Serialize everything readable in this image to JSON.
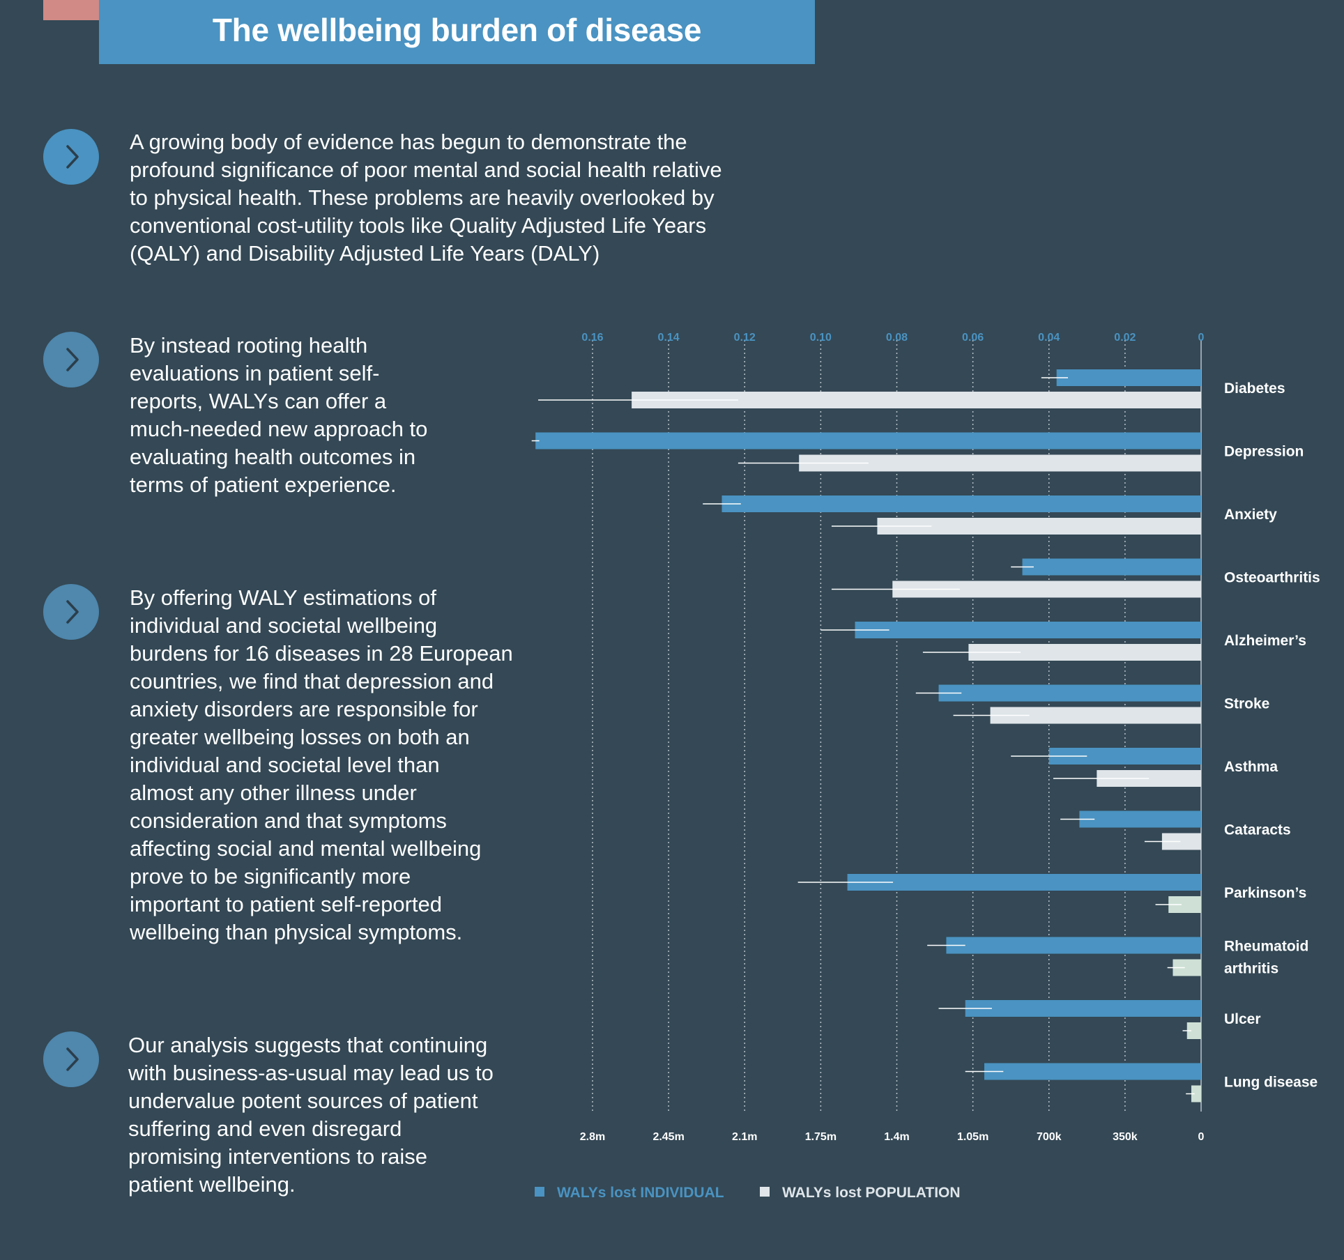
{
  "page": {
    "title": "The wellbeing burden of disease"
  },
  "paragraphs": [
    {
      "lines": [
        "A growing body of evidence has begun to demonstrate the",
        "profound significance of poor mental and social health relative",
        "to physical health. These problems are heavily overlooked by",
        "conventional cost-utility tools like Quality Adjusted Life Years",
        "(QALY) and Disability Adjusted Life Years (DALY)"
      ]
    },
    {
      "lines": [
        "By instead rooting health",
        "evaluations in patient self-",
        "reports, WALYs can offer a",
        "much-needed new approach to",
        "evaluating health outcomes in",
        "terms of patient experience."
      ]
    },
    {
      "lines": [
        "By offering WALY estimations of",
        "individual and societal wellbeing",
        "burdens for 16 diseases in 28 European",
        "countries, we find that depression and",
        "anxiety disorders are responsible for",
        "greater wellbeing losses on both an",
        "individual and societal level than",
        "almost any other illness under",
        "consideration and that symptoms",
        "affecting social and mental wellbeing",
        "prove to be significantly more",
        "important to patient self-reported",
        "wellbeing than physical symptoms."
      ]
    },
    {
      "lines": [
        "Our analysis suggests that continuing",
        "with business-as-usual may lead us to",
        "undervalue potent sources of patient",
        "suffering and even disregard",
        "promising interventions to raise",
        "patient wellbeing."
      ]
    }
  ],
  "chart_data": {
    "type": "bar",
    "orientation": "horizontal",
    "direction": "right-to-left",
    "categories": [
      [
        "Diabetes"
      ],
      [
        "Depression"
      ],
      [
        "Anxiety"
      ],
      [
        "Osteoarthritis"
      ],
      [
        "Alzheimer’s"
      ],
      [
        "Stroke"
      ],
      [
        "Asthma"
      ],
      [
        "Cataracts"
      ],
      [
        "Parkinson’s"
      ],
      [
        "Rheumatoid",
        "arthritis"
      ],
      [
        "Ulcer"
      ],
      [
        "Lung disease"
      ]
    ],
    "top_axis": {
      "ticks": [
        0.16,
        0.14,
        0.12,
        0.1,
        0.08,
        0.06,
        0.04,
        0.02,
        0
      ],
      "labels": [
        "0.16",
        "0.14",
        "0.12",
        "0.10",
        "0.08",
        "0.06",
        "0.04",
        "0.02",
        "0"
      ],
      "range": [
        0,
        0.16
      ]
    },
    "bottom_axis": {
      "ticks": [
        2800000,
        2450000,
        2100000,
        1750000,
        1400000,
        1050000,
        700000,
        350000,
        0
      ],
      "labels": [
        "2.8m",
        "2.45m",
        "2.1m",
        "1.75m",
        "1.4m",
        "1.05m",
        "700k",
        "350k",
        "0"
      ],
      "range": [
        0,
        2800000
      ]
    },
    "grid": "dotted vertical",
    "series": [
      {
        "name": "WALYs lost INDIVIDUAL",
        "axis": "top",
        "color": "#4a93c2",
        "values": [
          0.038,
          0.175,
          0.126,
          0.047,
          0.091,
          0.069,
          0.04,
          0.032,
          0.093,
          0.067,
          0.062,
          0.057
        ],
        "error_low": [
          0.035,
          0.174,
          0.121,
          0.044,
          0.082,
          0.063,
          0.03,
          0.028,
          0.081,
          0.062,
          0.055,
          0.052
        ],
        "error_high": [
          0.042,
          0.176,
          0.131,
          0.05,
          0.1,
          0.075,
          0.05,
          0.037,
          0.106,
          0.072,
          0.069,
          0.062
        ]
      },
      {
        "name": "WALYs lost POPULATION",
        "axis": "bottom",
        "color": "#dfe5e9",
        "values": [
          2620000,
          1850000,
          1490000,
          1420000,
          1070000,
          970000,
          480000,
          180000,
          150000,
          130000,
          65000,
          45000
        ],
        "error_low": [
          2130000,
          1530000,
          1240000,
          1110000,
          830000,
          790000,
          240000,
          95000,
          90000,
          75000,
          45000,
          30000
        ],
        "error_high": [
          3050000,
          2130000,
          1700000,
          1700000,
          1280000,
          1140000,
          680000,
          260000,
          210000,
          155000,
          85000,
          70000
        ],
        "bar_colors": [
          "#dfe5e9",
          "#dfe5e9",
          "#dfe5e9",
          "#dfe5e9",
          "#dfe5e9",
          "#dfe5e9",
          "#dfe5e9",
          "#dfe5e9",
          "#cfe1d6",
          "#cfe1d6",
          "#cfe1d6",
          "#cfe1d6"
        ]
      }
    ],
    "legend": {
      "placement": "bottom",
      "items": [
        {
          "label": "WALYs lost INDIVIDUAL",
          "color": "#4a93c2",
          "text_color": "#4a93c2"
        },
        {
          "label": "WALYs lost POPULATION",
          "color": "#dfe5e9",
          "text_color": "#dfe5e9"
        }
      ]
    },
    "colors": {
      "axis_label": "#4a93c2",
      "bottom_label": "#ffffff",
      "grid": "#b9c4cc",
      "error_bar": "#ffffff"
    }
  }
}
